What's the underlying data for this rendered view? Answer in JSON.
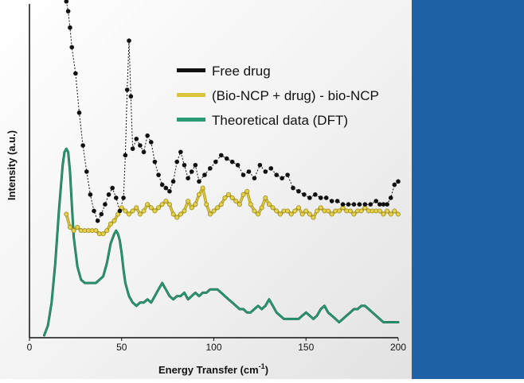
{
  "colors": {
    "background_left": "#f2f2f2",
    "side_panel": "#1f63a6",
    "free_drug": "#111111",
    "bio_ncp": "#dcc53a",
    "dft": "#2a9a73"
  },
  "chart_data": {
    "type": "line",
    "title": "",
    "xlabel": "Energy Transfer (cm",
    "xlabel_superscript": "-1",
    "xlabel_suffix": ")",
    "ylabel": "Intensity (a.u.)",
    "xlim": [
      0,
      200
    ],
    "ylim": [
      0,
      100
    ],
    "x_ticks": [
      0,
      50,
      100,
      150,
      200
    ],
    "legend_position": "top-right",
    "series": [
      {
        "name": "Free drug",
        "style": "dotted-markers",
        "x": [
          20,
          21,
          22,
          23,
          25,
          27,
          29,
          31,
          33,
          35,
          37,
          39,
          41,
          43,
          45,
          47,
          49,
          51,
          52,
          53,
          54,
          55,
          56,
          58,
          60,
          62,
          64,
          66,
          68,
          70,
          72,
          74,
          76,
          78,
          80,
          82,
          84,
          86,
          88,
          90,
          92,
          95,
          98,
          101,
          104,
          107,
          110,
          113,
          116,
          119,
          122,
          125,
          128,
          131,
          134,
          137,
          140,
          143,
          146,
          149,
          152,
          155,
          158,
          161,
          164,
          167,
          170,
          173,
          176,
          179,
          182,
          185,
          188,
          190,
          192,
          194,
          196,
          198,
          200
        ],
        "values": [
          102,
          99,
          94,
          88,
          80,
          68,
          58,
          50,
          43,
          38,
          35,
          37,
          40,
          43,
          45,
          42,
          38,
          42,
          55,
          75,
          90,
          73,
          57,
          60,
          58,
          56,
          61,
          59,
          53,
          49,
          46,
          45,
          44,
          47,
          53,
          56,
          52,
          48,
          50,
          52,
          47,
          49,
          51,
          53,
          55,
          54,
          53,
          52,
          49,
          50,
          48,
          52,
          50,
          51,
          49,
          48,
          49,
          45,
          44,
          43,
          42,
          43,
          42,
          42,
          41,
          41,
          40,
          40,
          40,
          40,
          40,
          40,
          41,
          40,
          40,
          40,
          42,
          46,
          47
        ]
      },
      {
        "name": "(Bio-NCP + drug) - bio-NCP",
        "style": "beaded",
        "x": [
          20,
          22,
          24,
          26,
          28,
          30,
          32,
          34,
          36,
          38,
          40,
          42,
          44,
          46,
          48,
          50,
          52,
          54,
          56,
          58,
          60,
          62,
          64,
          66,
          68,
          70,
          72,
          74,
          76,
          78,
          80,
          82,
          84,
          86,
          88,
          90,
          92,
          94,
          96,
          98,
          100,
          102,
          104,
          106,
          108,
          110,
          112,
          114,
          116,
          118,
          120,
          122,
          124,
          126,
          128,
          130,
          132,
          134,
          136,
          138,
          140,
          142,
          144,
          146,
          148,
          150,
          152,
          154,
          156,
          158,
          160,
          162,
          164,
          166,
          168,
          170,
          172,
          174,
          176,
          178,
          180,
          182,
          184,
          186,
          188,
          190,
          192,
          194,
          196,
          198,
          200
        ],
        "values": [
          37,
          33,
          32,
          33,
          32,
          32,
          32,
          32,
          32,
          31,
          31,
          32,
          34,
          35,
          37,
          39,
          38,
          37,
          38,
          39,
          37,
          38,
          40,
          39,
          38,
          39,
          40,
          41,
          40,
          37,
          36,
          37,
          38,
          41,
          39,
          40,
          43,
          45,
          40,
          37,
          38,
          39,
          40,
          42,
          43,
          42,
          41,
          40,
          43,
          44,
          40,
          38,
          37,
          39,
          42,
          40,
          39,
          38,
          37,
          38,
          38,
          37,
          38,
          39,
          37,
          38,
          37,
          36,
          38,
          39,
          38,
          38,
          37,
          38,
          38,
          39,
          38,
          38,
          37,
          38,
          38,
          39,
          38,
          38,
          38,
          38,
          37,
          38,
          37,
          38,
          37
        ]
      },
      {
        "name": "Theoretical data (DFT)",
        "style": "smooth-line",
        "x": [
          8,
          10,
          12,
          14,
          16,
          18,
          19,
          20,
          21,
          22,
          23,
          24,
          26,
          28,
          30,
          32,
          34,
          36,
          38,
          40,
          42,
          44,
          46,
          47,
          48,
          49,
          50,
          51,
          52,
          54,
          56,
          58,
          60,
          62,
          64,
          66,
          68,
          70,
          72,
          74,
          76,
          78,
          80,
          82,
          84,
          86,
          88,
          90,
          92,
          94,
          96,
          98,
          100,
          102,
          104,
          106,
          108,
          110,
          112,
          114,
          116,
          118,
          120,
          122,
          124,
          126,
          128,
          130,
          132,
          134,
          136,
          138,
          140,
          142,
          144,
          146,
          148,
          150,
          152,
          154,
          156,
          158,
          160,
          162,
          164,
          166,
          168,
          170,
          172,
          174,
          176,
          178,
          180,
          182,
          184,
          186,
          188,
          190,
          192,
          194,
          196,
          198,
          200
        ],
        "values": [
          0,
          3,
          10,
          22,
          38,
          52,
          56,
          57,
          56,
          50,
          40,
          30,
          21,
          17,
          16,
          16,
          16,
          16,
          17,
          18,
          22,
          28,
          31,
          32,
          31,
          29,
          25,
          20,
          16,
          12,
          10,
          9,
          10,
          10,
          11,
          10,
          12,
          14,
          16,
          14,
          12,
          11,
          12,
          12,
          13,
          11,
          12,
          13,
          12,
          13,
          13,
          14,
          14,
          14,
          13,
          12,
          11,
          10,
          9,
          8,
          8,
          7,
          7,
          8,
          9,
          8,
          9,
          11,
          9,
          7,
          6,
          5,
          5,
          5,
          5,
          5,
          6,
          7,
          6,
          5,
          6,
          8,
          9,
          7,
          6,
          5,
          4,
          5,
          6,
          7,
          8,
          8,
          9,
          9,
          8,
          7,
          6,
          5,
          4,
          4,
          4,
          4,
          4
        ]
      }
    ]
  }
}
